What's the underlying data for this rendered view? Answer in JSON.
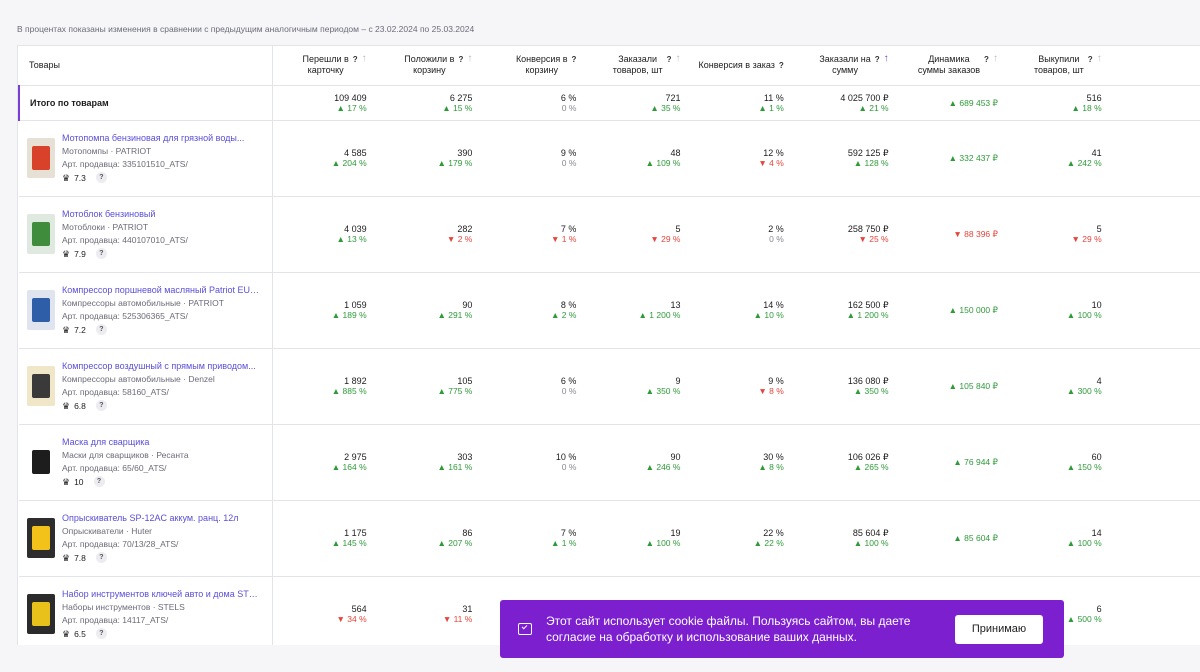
{
  "note": "В процентах показаны изменения в сравнении с предыдущим аналогичным периодом – с 23.02.2024 по 25.03.2024",
  "columns": {
    "goods": "Товары",
    "c1": [
      "Перешли в",
      "карточку"
    ],
    "c2": [
      "Положили в",
      "корзину"
    ],
    "c3": [
      "Конверсия в",
      "корзину"
    ],
    "c4": [
      "Заказали",
      "товаров, шт"
    ],
    "c5": [
      "Конверсия в заказ"
    ],
    "c6": [
      "Заказали на",
      "сумму"
    ],
    "c7": [
      "Динамика",
      "суммы заказов"
    ],
    "c8": [
      "Выкупили",
      "товаров, шт"
    ],
    "help": "?",
    "sort_arrow": "↑"
  },
  "colors": {
    "accent": "#7a3dd6",
    "up": "#2f9a3a",
    "down": "#e5453a",
    "cookie_bg": "#7b1fcf",
    "link": "#5a4fd6"
  },
  "total": {
    "label": "Итого по товарам",
    "cells": [
      {
        "v": "109 409",
        "c": "▲ 17 %",
        "d": "up"
      },
      {
        "v": "6 275",
        "c": "▲ 15 %",
        "d": "up"
      },
      {
        "v": "6 %",
        "c": "0 %",
        "d": "neutral"
      },
      {
        "v": "721",
        "c": "▲ 35 %",
        "d": "up"
      },
      {
        "v": "11 %",
        "c": "▲ 1 %",
        "d": "up"
      },
      {
        "v": "4 025 700 ₽",
        "c": "▲ 21 %",
        "d": "up"
      },
      {
        "v": "▲ 689 453 ₽",
        "d": "up"
      },
      {
        "v": "516",
        "c": "▲ 18 %",
        "d": "up"
      }
    ]
  },
  "rows": [
    {
      "name": "Мотопомпа бензиновая для грязной воды...",
      "category": "Мотопомпы · PATRIOT",
      "article": "Арт. продавца: 335101510_ATS/",
      "rating": "7.3",
      "cells": [
        {
          "v": "4 585",
          "c": "▲ 204 %",
          "d": "up"
        },
        {
          "v": "390",
          "c": "▲ 179 %",
          "d": "up"
        },
        {
          "v": "9 %",
          "c": "0 %",
          "d": "neutral"
        },
        {
          "v": "48",
          "c": "▲ 109 %",
          "d": "up"
        },
        {
          "v": "12 %",
          "c": "▼ 4 %",
          "d": "down"
        },
        {
          "v": "592 125 ₽",
          "c": "▲ 128 %",
          "d": "up"
        },
        {
          "v": "▲ 332 437 ₽",
          "d": "up"
        },
        {
          "v": "41",
          "c": "▲ 242 %",
          "d": "up"
        }
      ]
    },
    {
      "name": "Мотоблок бензиновый",
      "category": "Мотоблоки · PATRIOT",
      "article": "Арт. продавца: 440107010_ATS/",
      "rating": "7.9",
      "cells": [
        {
          "v": "4 039",
          "c": "▲ 13 %",
          "d": "up"
        },
        {
          "v": "282",
          "c": "▼ 2 %",
          "d": "down"
        },
        {
          "v": "7 %",
          "c": "▼ 1 %",
          "d": "down"
        },
        {
          "v": "5",
          "c": "▼ 29 %",
          "d": "down"
        },
        {
          "v": "2 %",
          "c": "0 %",
          "d": "neutral"
        },
        {
          "v": "258 750 ₽",
          "c": "▼ 25 %",
          "d": "down"
        },
        {
          "v": "▼ 88 396 ₽",
          "d": "down"
        },
        {
          "v": "5",
          "c": "▼ 29 %",
          "d": "down"
        }
      ]
    },
    {
      "name": "Компрессор поршневой масляный Patriot EUR...",
      "category": "Компрессоры автомобильные · PATRIOT",
      "article": "Арт. продавца: 525306365_ATS/",
      "rating": "7.2",
      "cells": [
        {
          "v": "1 059",
          "c": "▲ 189 %",
          "d": "up"
        },
        {
          "v": "90",
          "c": "▲ 291 %",
          "d": "up"
        },
        {
          "v": "8 %",
          "c": "▲ 2 %",
          "d": "up"
        },
        {
          "v": "13",
          "c": "▲ 1 200 %",
          "d": "up"
        },
        {
          "v": "14 %",
          "c": "▲ 10 %",
          "d": "up"
        },
        {
          "v": "162 500 ₽",
          "c": "▲ 1 200 %",
          "d": "up"
        },
        {
          "v": "▲ 150 000 ₽",
          "d": "up"
        },
        {
          "v": "10",
          "c": "▲ 100 %",
          "d": "up"
        }
      ]
    },
    {
      "name": "Компрессор воздушный с прямым приводом...",
      "category": "Компрессоры автомобильные · Denzel",
      "article": "Арт. продавца: 58160_ATS/",
      "rating": "6.8",
      "cells": [
        {
          "v": "1 892",
          "c": "▲ 885 %",
          "d": "up"
        },
        {
          "v": "105",
          "c": "▲ 775 %",
          "d": "up"
        },
        {
          "v": "6 %",
          "c": "0 %",
          "d": "neutral"
        },
        {
          "v": "9",
          "c": "▲ 350 %",
          "d": "up"
        },
        {
          "v": "9 %",
          "c": "▼ 8 %",
          "d": "down"
        },
        {
          "v": "136 080 ₽",
          "c": "▲ 350 %",
          "d": "up"
        },
        {
          "v": "▲ 105 840 ₽",
          "d": "up"
        },
        {
          "v": "4",
          "c": "▲ 300 %",
          "d": "up"
        }
      ]
    },
    {
      "name": "Маска для сварщика",
      "category": "Маски для сварщиков · Ресанта",
      "article": "Арт. продавца: 65/60_ATS/",
      "rating": "10",
      "cells": [
        {
          "v": "2 975",
          "c": "▲ 164 %",
          "d": "up"
        },
        {
          "v": "303",
          "c": "▲ 161 %",
          "d": "up"
        },
        {
          "v": "10 %",
          "c": "0 %",
          "d": "neutral"
        },
        {
          "v": "90",
          "c": "▲ 246 %",
          "d": "up"
        },
        {
          "v": "30 %",
          "c": "▲ 8 %",
          "d": "up"
        },
        {
          "v": "106 026 ₽",
          "c": "▲ 265 %",
          "d": "up"
        },
        {
          "v": "▲ 76 944 ₽",
          "d": "up"
        },
        {
          "v": "60",
          "c": "▲ 150 %",
          "d": "up"
        }
      ]
    },
    {
      "name": "Опрыскиватель SP-12AC аккум. ранц. 12л",
      "category": "Опрыскиватели · Huter",
      "article": "Арт. продавца: 70/13/28_ATS/",
      "rating": "7.8",
      "cells": [
        {
          "v": "1 175",
          "c": "▲ 145 %",
          "d": "up"
        },
        {
          "v": "86",
          "c": "▲ 207 %",
          "d": "up"
        },
        {
          "v": "7 %",
          "c": "▲ 1 %",
          "d": "up"
        },
        {
          "v": "19",
          "c": "▲ 100 %",
          "d": "up"
        },
        {
          "v": "22 %",
          "c": "▲ 22 %",
          "d": "up"
        },
        {
          "v": "85 604 ₽",
          "c": "▲ 100 %",
          "d": "up"
        },
        {
          "v": "▲ 85 604 ₽",
          "d": "up"
        },
        {
          "v": "14",
          "c": "▲ 100 %",
          "d": "up"
        }
      ]
    },
    {
      "name": "Набор инструментов ключей авто и дома STEL...",
      "category": "Наборы инструментов · STELS",
      "article": "Арт. продавца: 14117_ATS/",
      "rating": "6.5",
      "cells": [
        {
          "v": "564",
          "c": "▼ 34 %",
          "d": "down"
        },
        {
          "v": "31",
          "c": "▼ 11 %",
          "d": "down"
        },
        {
          "v": "",
          "c": "",
          "d": "neutral"
        },
        {
          "v": "",
          "c": "",
          "d": "neutral"
        },
        {
          "v": "",
          "c": "",
          "d": "neutral"
        },
        {
          "v": "",
          "c": "",
          "d": "neutral"
        },
        {
          "v": "",
          "d": "neutral"
        },
        {
          "v": "6",
          "c": "▲ 500 %",
          "d": "up"
        }
      ]
    }
  ],
  "thumb_colors": [
    [
      "#e6e1d4",
      "#d8412a"
    ],
    [
      "#dfe9df",
      "#3f8d3c"
    ],
    [
      "#dfe4ee",
      "#2f5ea8"
    ],
    [
      "#f0e6c8",
      "#3a3a3a"
    ],
    [
      "#ffffff",
      "#1d1d1d"
    ],
    [
      "#2d2d2d",
      "#f2c21a"
    ],
    [
      "#2b2b2b",
      "#e8c21a"
    ]
  ],
  "cookie": {
    "text": "Этот сайт использует cookie файлы. Пользуясь сайтом, вы даете согласие на обработку и использование ваших данных.",
    "button": "Принимаю"
  }
}
